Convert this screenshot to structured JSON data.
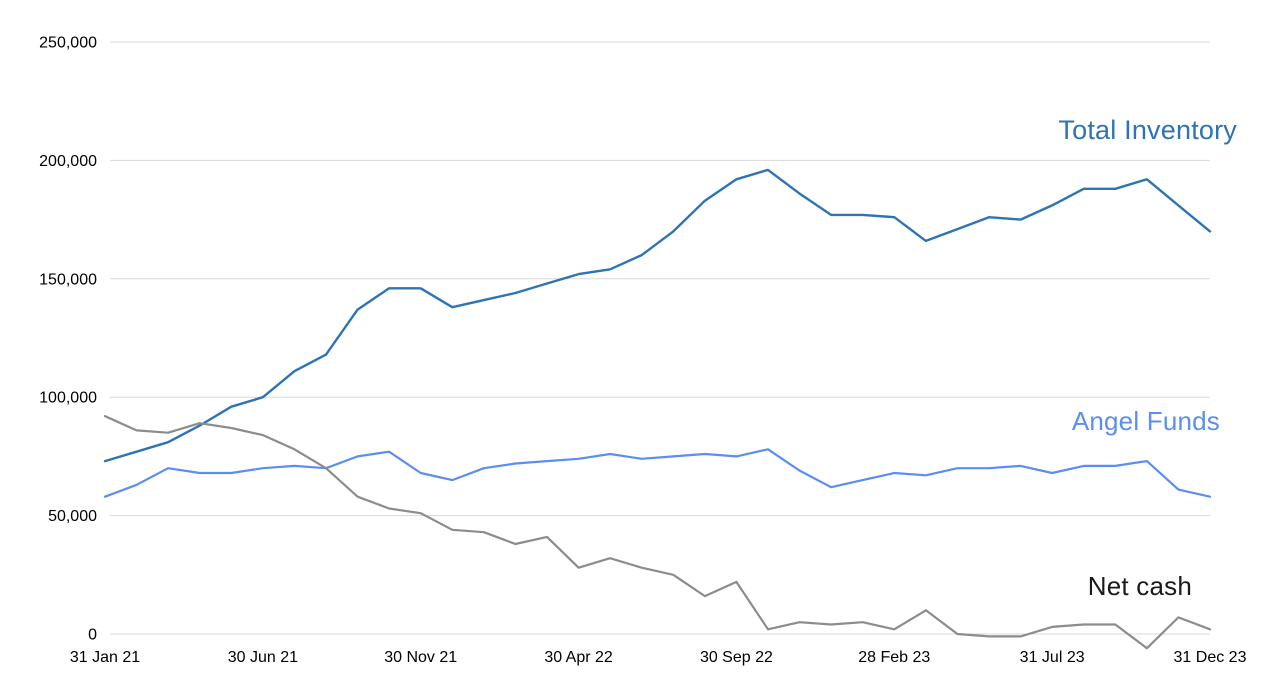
{
  "chart_data": {
    "type": "line",
    "title": "",
    "xlabel": "",
    "ylabel": "",
    "grid": true,
    "legend_position": "inline-annotations",
    "background_color": "#ffffff",
    "gridline_color": "#d9d9d9",
    "tick_label_color": "#000000",
    "ylim": [
      0,
      250000
    ],
    "y_ticks": {
      "values": [
        0,
        50000,
        100000,
        150000,
        200000,
        250000
      ],
      "labels": [
        "0",
        "50,000",
        "100,000",
        "150,000",
        "200,000",
        "250,000"
      ]
    },
    "x_ticks": {
      "indices": [
        0,
        5,
        10,
        15,
        20,
        25,
        30,
        35
      ],
      "labels": [
        "31 Jan 21",
        "30 Jun 21",
        "30 Nov 21",
        "30 Apr 22",
        "30 Sep 22",
        "28 Feb 23",
        "31 Jul 23",
        "31 Dec 23"
      ]
    },
    "categories": [
      "31 Jan 21",
      "28 Feb 21",
      "31 Mar 21",
      "30 Apr 21",
      "31 May 21",
      "30 Jun 21",
      "31 Jul 21",
      "31 Aug 21",
      "30 Sep 21",
      "31 Oct 21",
      "30 Nov 21",
      "31 Dec 21",
      "31 Jan 22",
      "28 Feb 22",
      "31 Mar 22",
      "30 Apr 22",
      "31 May 22",
      "30 Jun 22",
      "31 Jul 22",
      "31 Aug 22",
      "30 Sep 22",
      "31 Oct 22",
      "30 Nov 22",
      "31 Dec 22",
      "31 Jan 23",
      "28 Feb 23",
      "31 Mar 23",
      "30 Apr 23",
      "31 May 23",
      "30 Jun 23",
      "31 Jul 23",
      "31 Aug 23",
      "30 Sep 23",
      "31 Oct 23",
      "30 Nov 23",
      "31 Dec 23"
    ],
    "series": [
      {
        "name": "Total Inventory",
        "color": "#2e74b5",
        "stroke_width": 2.4,
        "values": [
          73000,
          77000,
          81000,
          88000,
          96000,
          100000,
          111000,
          118000,
          137000,
          146000,
          146000,
          138000,
          141000,
          144000,
          148000,
          152000,
          154000,
          160000,
          170000,
          183000,
          192000,
          196000,
          186000,
          177000,
          177000,
          176000,
          166000,
          171000,
          176000,
          175000,
          181000,
          188000,
          188000,
          192000,
          181000,
          170000
        ]
      },
      {
        "name": "Angel Funds",
        "color": "#5b8df2",
        "stroke_width": 2.2,
        "values": [
          58000,
          63000,
          70000,
          68000,
          68000,
          70000,
          71000,
          70000,
          75000,
          77000,
          68000,
          65000,
          70000,
          72000,
          73000,
          74000,
          76000,
          74000,
          75000,
          76000,
          75000,
          78000,
          69000,
          62000,
          65000,
          68000,
          67000,
          70000,
          70000,
          71000,
          68000,
          71000,
          71000,
          73000,
          61000,
          58000
        ]
      },
      {
        "name": "Net cash",
        "color": "#8c8c8c",
        "stroke_width": 2.2,
        "values": [
          92000,
          86000,
          85000,
          89000,
          87000,
          84000,
          78000,
          70000,
          58000,
          53000,
          51000,
          44000,
          43000,
          38000,
          41000,
          28000,
          32000,
          28000,
          25000,
          16000,
          22000,
          2000,
          5000,
          4000,
          5000,
          2000,
          10000,
          0,
          -1000,
          -1000,
          3000,
          4000,
          4000,
          -6000,
          7000,
          2000
        ]
      }
    ],
    "annotations": [
      {
        "text": "Total Inventory",
        "color": "#2e74b5"
      },
      {
        "text": "Angel Funds",
        "color": "#5b8df2"
      },
      {
        "text": "Net cash",
        "color": "#1a1a1a"
      }
    ]
  }
}
